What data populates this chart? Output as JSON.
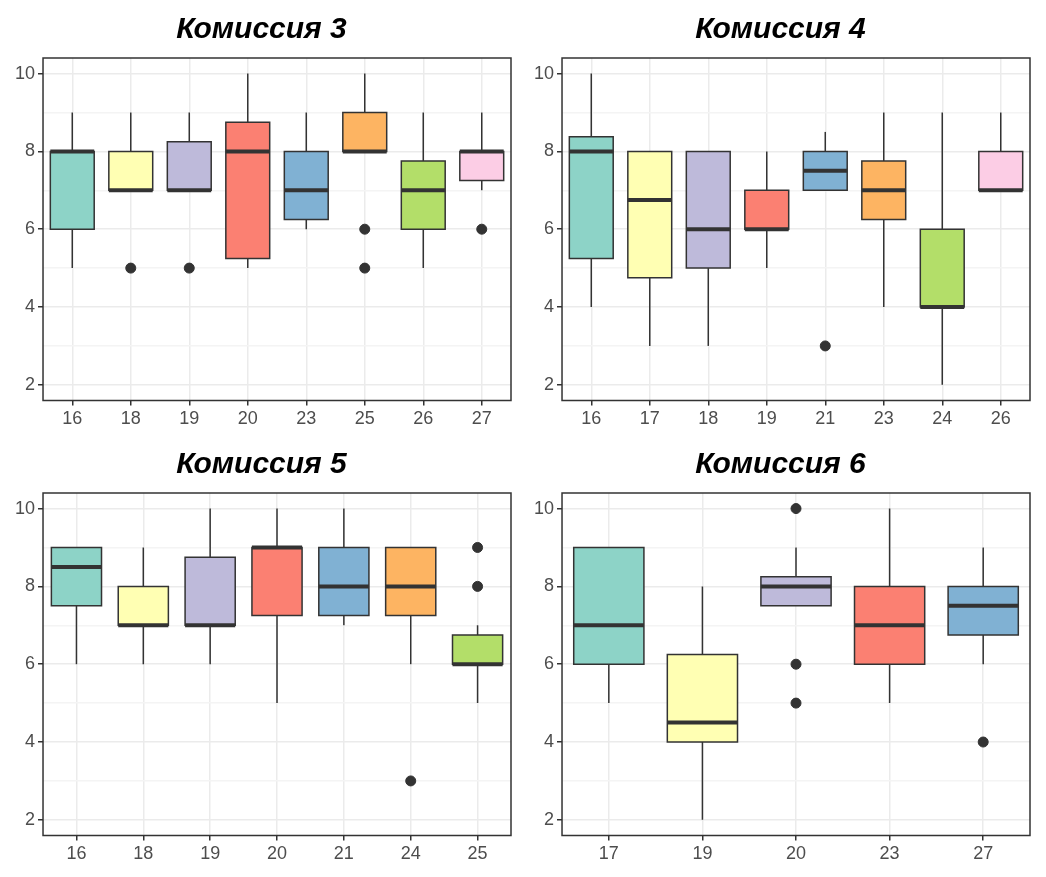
{
  "chart_data": [
    {
      "type": "box",
      "title": "Комиссия 3",
      "categories": [
        "16",
        "18",
        "19",
        "20",
        "23",
        "25",
        "26",
        "27"
      ],
      "colors": [
        "#8dd3c7",
        "#ffffb3",
        "#bebada",
        "#fb8072",
        "#80b1d3",
        "#fdb462",
        "#b3de69",
        "#fccde5"
      ],
      "boxes": [
        {
          "low": 5,
          "q1": 6,
          "median": 8,
          "q3": 8,
          "high": 9
        },
        {
          "low": 7,
          "q1": 7,
          "median": 7,
          "q3": 8,
          "high": 9,
          "outliers": [
            5
          ]
        },
        {
          "low": 7,
          "q1": 7,
          "median": 7,
          "q3": 8.25,
          "high": 9,
          "outliers": [
            5
          ]
        },
        {
          "low": 5,
          "q1": 5.25,
          "median": 8,
          "q3": 8.75,
          "high": 10
        },
        {
          "low": 6,
          "q1": 6.25,
          "median": 7,
          "q3": 8,
          "high": 9
        },
        {
          "low": 8,
          "q1": 8,
          "median": 8,
          "q3": 9,
          "high": 10,
          "outliers": [
            6,
            5
          ]
        },
        {
          "low": 5,
          "q1": 6,
          "median": 7,
          "q3": 7.75,
          "high": 9
        },
        {
          "low": 7,
          "q1": 7.25,
          "median": 8,
          "q3": 8,
          "high": 9,
          "outliers": [
            6
          ]
        }
      ],
      "ylim": [
        1.6,
        10.4
      ],
      "yticks": [
        2,
        {
          "value": 3,
          "label": null
        },
        4,
        {
          "value": 5,
          "label": null
        },
        6,
        {
          "value": 7,
          "label": null
        },
        8,
        {
          "value": 9,
          "label": null
        },
        10
      ],
      "grid": true
    },
    {
      "type": "box",
      "title": "Комиссия 4",
      "categories": [
        "16",
        "17",
        "18",
        "19",
        "21",
        "23",
        "24",
        "26"
      ],
      "colors": [
        "#8dd3c7",
        "#ffffb3",
        "#bebada",
        "#fb8072",
        "#80b1d3",
        "#fdb462",
        "#b3de69",
        "#fccde5"
      ],
      "boxes": [
        {
          "low": 4,
          "q1": 5.25,
          "median": 8,
          "q3": 8.375,
          "high": 10
        },
        {
          "low": 3,
          "q1": 4.75,
          "median": 6.75,
          "q3": 8,
          "high": 8
        },
        {
          "low": 3,
          "q1": 5,
          "median": 6,
          "q3": 8,
          "high": 8
        },
        {
          "low": 5,
          "q1": 6,
          "median": 6,
          "q3": 7,
          "high": 8
        },
        {
          "low": 7,
          "q1": 7,
          "median": 7.5,
          "q3": 8,
          "high": 8.5,
          "outliers": [
            3
          ]
        },
        {
          "low": 4,
          "q1": 6.25,
          "median": 7,
          "q3": 7.75,
          "high": 9
        },
        {
          "low": 2,
          "q1": 4,
          "median": 4,
          "q3": 6,
          "high": 9
        },
        {
          "low": 7,
          "q1": 7,
          "median": 7,
          "q3": 8,
          "high": 9
        }
      ],
      "ylim": [
        1.6,
        10.4
      ],
      "yticks": [
        2,
        {
          "value": 3,
          "label": null
        },
        4,
        {
          "value": 5,
          "label": null
        },
        6,
        {
          "value": 7,
          "label": null
        },
        8,
        {
          "value": 9,
          "label": null
        },
        10
      ],
      "grid": true
    },
    {
      "type": "box",
      "title": "Комиссия 5",
      "categories": [
        "16",
        "18",
        "19",
        "20",
        "21",
        "24",
        "25"
      ],
      "colors": [
        "#8dd3c7",
        "#ffffb3",
        "#bebada",
        "#fb8072",
        "#80b1d3",
        "#fdb462",
        "#b3de69"
      ],
      "boxes": [
        {
          "low": 6,
          "q1": 7.5,
          "median": 8.5,
          "q3": 9,
          "high": 9
        },
        {
          "low": 6,
          "q1": 7,
          "median": 7,
          "q3": 8,
          "high": 9
        },
        {
          "low": 6,
          "q1": 7,
          "median": 7,
          "q3": 8.75,
          "high": 10
        },
        {
          "low": 5,
          "q1": 7.25,
          "median": 9,
          "q3": 9,
          "high": 10
        },
        {
          "low": 7,
          "q1": 7.25,
          "median": 8,
          "q3": 9,
          "high": 10
        },
        {
          "low": 6,
          "q1": 7.25,
          "median": 8,
          "q3": 9,
          "high": 9,
          "outliers": [
            3
          ]
        },
        {
          "low": 5,
          "q1": 6,
          "median": 6,
          "q3": 6.75,
          "high": 7,
          "outliers": [
            9,
            8
          ]
        }
      ],
      "ylim": [
        1.6,
        10.4
      ],
      "yticks": [
        2,
        {
          "value": 3,
          "label": null
        },
        4,
        {
          "value": 5,
          "label": null
        },
        6,
        {
          "value": 7,
          "label": null
        },
        8,
        {
          "value": 9,
          "label": null
        },
        10
      ],
      "grid": true
    },
    {
      "type": "box",
      "title": "Комиссия 6",
      "categories": [
        "17",
        "19",
        "20",
        "23",
        "27"
      ],
      "colors": [
        "#8dd3c7",
        "#ffffb3",
        "#bebada",
        "#fb8072",
        "#80b1d3"
      ],
      "boxes": [
        {
          "low": 5,
          "q1": 6,
          "median": 7,
          "q3": 9,
          "high": 9
        },
        {
          "low": 2,
          "q1": 4,
          "median": 4.5,
          "q3": 6.25,
          "high": 8
        },
        {
          "low": 7.5,
          "q1": 7.5,
          "median": 8,
          "q3": 8.25,
          "high": 9,
          "outliers": [
            10,
            6,
            5
          ]
        },
        {
          "low": 5,
          "q1": 6,
          "median": 7,
          "q3": 8,
          "high": 10
        },
        {
          "low": 6,
          "q1": 6.75,
          "median": 7.5,
          "q3": 8,
          "high": 9,
          "outliers": [
            4
          ]
        }
      ],
      "ylim": [
        1.6,
        10.4
      ],
      "yticks": [
        2,
        {
          "value": 3,
          "label": null
        },
        4,
        {
          "value": 5,
          "label": null
        },
        6,
        {
          "value": 7,
          "label": null
        },
        8,
        {
          "value": 9,
          "label": null
        },
        10
      ],
      "grid": true
    }
  ]
}
